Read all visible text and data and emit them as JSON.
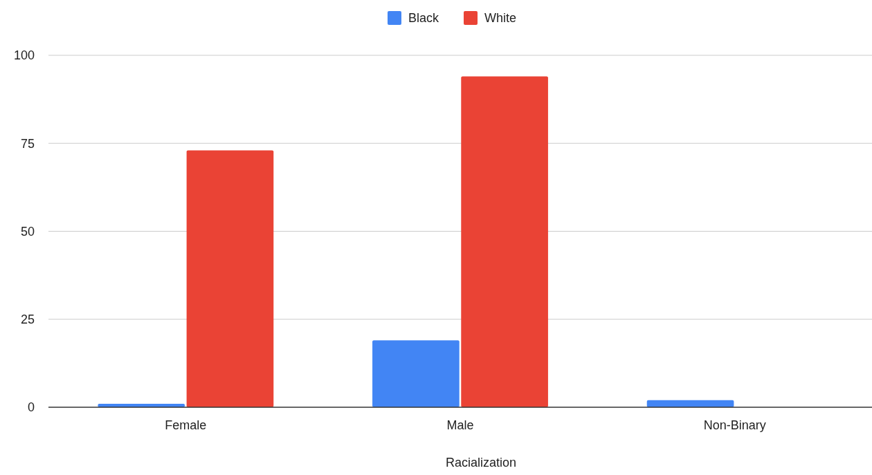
{
  "chart_data": {
    "type": "bar",
    "xlabel": "Racialization",
    "categories": [
      "Female",
      "Male",
      "Non-Binary"
    ],
    "series": [
      {
        "name": "Black",
        "color": "#4285f4",
        "values": [
          1,
          19,
          2
        ]
      },
      {
        "name": "White",
        "color": "#ea4335",
        "values": [
          73,
          94,
          0
        ]
      }
    ],
    "ylim": [
      0,
      100
    ],
    "yticks": [
      0,
      25,
      50,
      75,
      100
    ],
    "grid": "y",
    "legend": "top"
  }
}
